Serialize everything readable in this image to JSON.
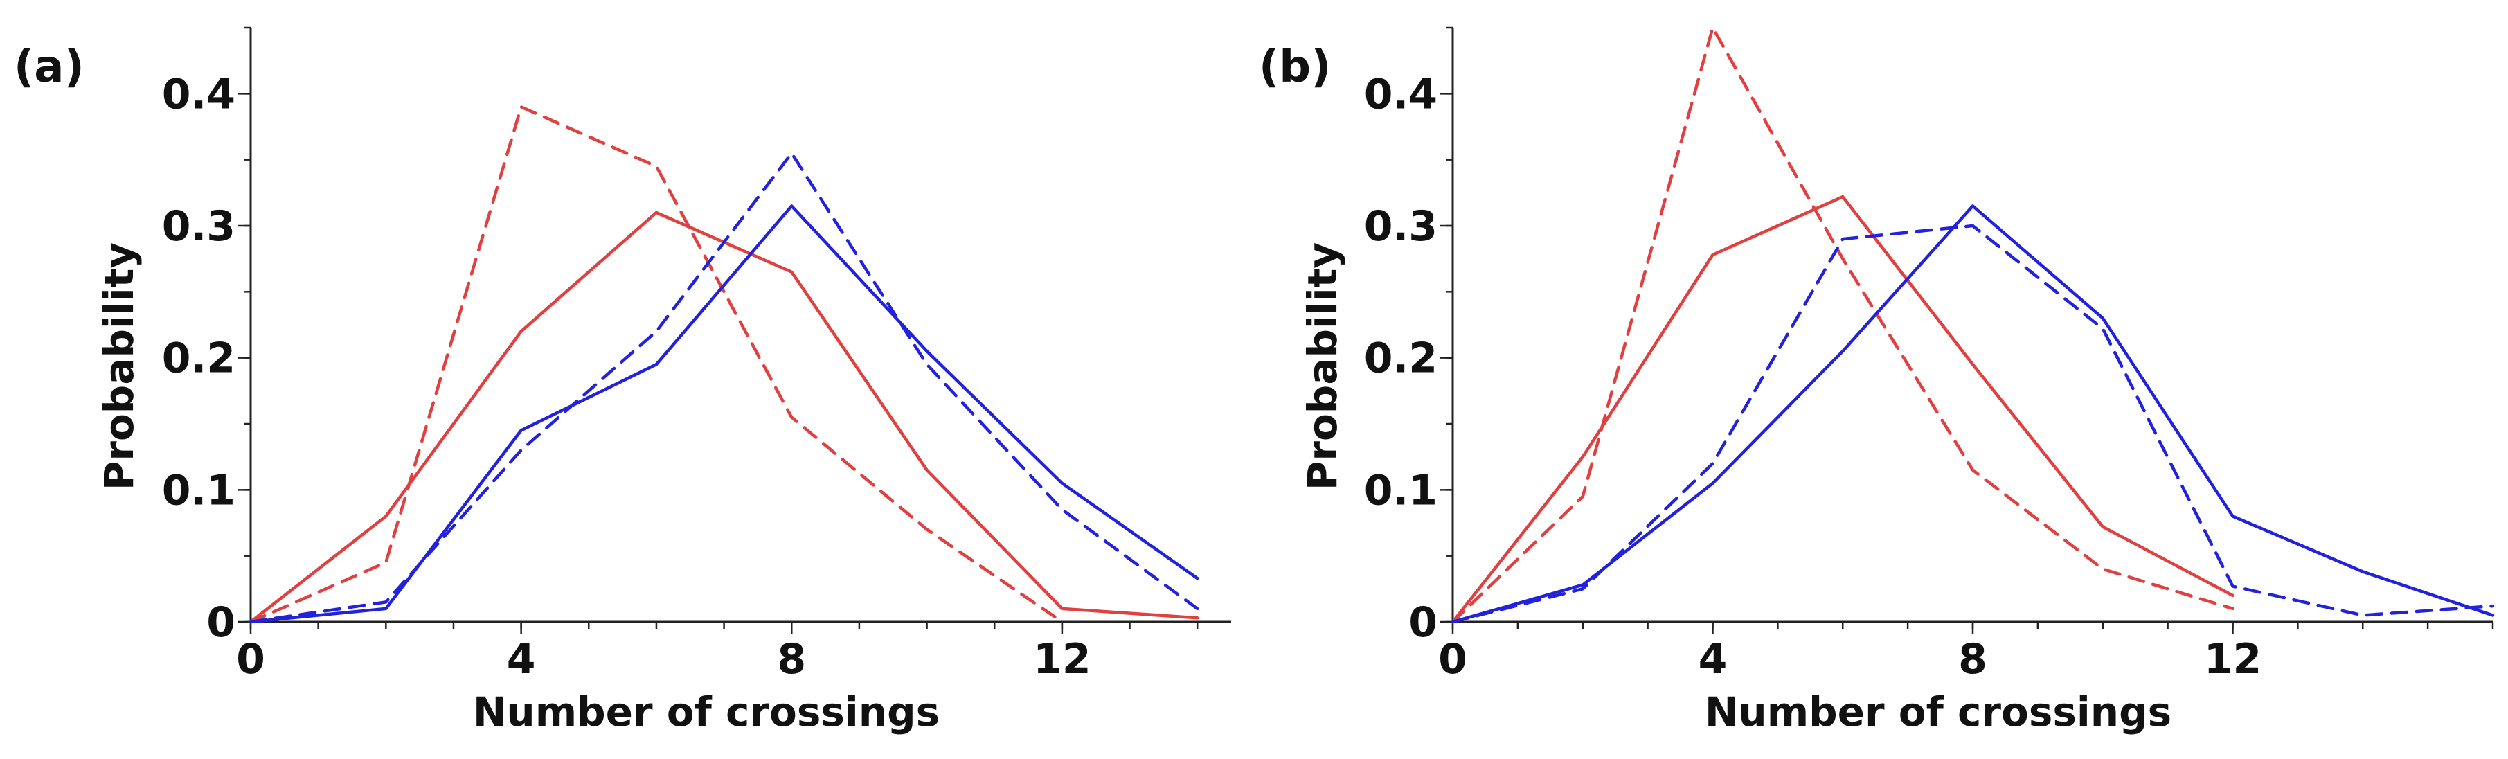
{
  "chart_data": [
    {
      "type": "line",
      "panel_label": "(a)",
      "xlabel": "Number of crossings",
      "ylabel": "Probability",
      "xlim": [
        0,
        14.5
      ],
      "ylim": [
        0,
        0.45
      ],
      "x_ticks": [
        0,
        4,
        8,
        12
      ],
      "x_tick_labels": [
        "0",
        "4",
        "8",
        "12"
      ],
      "y_ticks": [
        0,
        0.1,
        0.2,
        0.3,
        0.4
      ],
      "y_tick_labels": [
        "0",
        "0.1",
        "0.2",
        "0.3",
        "0.4"
      ],
      "series": [
        {
          "name": "red solid",
          "color": "#e04040",
          "dash": "solid",
          "x": [
            0,
            2,
            4,
            6,
            8,
            10,
            12,
            14
          ],
          "values": [
            0.0,
            0.08,
            0.22,
            0.31,
            0.265,
            0.115,
            0.01,
            0.003
          ]
        },
        {
          "name": "red dashed",
          "color": "#e04040",
          "dash": "dashed",
          "x": [
            0,
            2,
            4,
            6,
            8,
            10,
            12
          ],
          "values": [
            0.0,
            0.045,
            0.39,
            0.345,
            0.155,
            0.07,
            0.0
          ]
        },
        {
          "name": "blue solid",
          "color": "#2222dd",
          "dash": "solid",
          "x": [
            0,
            2,
            4,
            6,
            8,
            10,
            12,
            14
          ],
          "values": [
            0.0,
            0.01,
            0.145,
            0.195,
            0.315,
            0.205,
            0.105,
            0.033
          ]
        },
        {
          "name": "blue dashed",
          "color": "#2222dd",
          "dash": "dashed",
          "x": [
            0,
            2,
            4,
            6,
            8,
            10,
            12,
            14
          ],
          "values": [
            0.0,
            0.015,
            0.13,
            0.22,
            0.355,
            0.195,
            0.085,
            0.01
          ]
        }
      ]
    },
    {
      "type": "line",
      "panel_label": "(b)",
      "xlabel": "Number of crossings",
      "ylabel": "Probability",
      "xlim": [
        0,
        16
      ],
      "ylim": [
        0,
        0.45
      ],
      "x_ticks": [
        0,
        4,
        8,
        12
      ],
      "x_tick_labels": [
        "0",
        "4",
        "8",
        "12"
      ],
      "y_ticks": [
        0,
        0.1,
        0.2,
        0.3,
        0.4
      ],
      "y_tick_labels": [
        "0",
        "0.1",
        "0.2",
        "0.3",
        "0.4"
      ],
      "series": [
        {
          "name": "red solid",
          "color": "#e04040",
          "dash": "solid",
          "x": [
            0,
            2,
            4,
            6,
            8,
            10,
            12
          ],
          "values": [
            0.0,
            0.125,
            0.278,
            0.322,
            0.195,
            0.072,
            0.02
          ]
        },
        {
          "name": "red dashed",
          "color": "#e04040",
          "dash": "dashed",
          "x": [
            0,
            2,
            4,
            6,
            8,
            10,
            12
          ],
          "values": [
            0.0,
            0.095,
            0.45,
            0.275,
            0.115,
            0.04,
            0.01
          ]
        },
        {
          "name": "blue solid",
          "color": "#2222dd",
          "dash": "solid",
          "x": [
            0,
            2,
            4,
            6,
            8,
            10,
            12,
            14,
            16
          ],
          "values": [
            0.0,
            0.028,
            0.105,
            0.205,
            0.315,
            0.23,
            0.08,
            0.038,
            0.005
          ]
        },
        {
          "name": "blue dashed",
          "color": "#2222dd",
          "dash": "dashed",
          "x": [
            0,
            2,
            4,
            6,
            8,
            10,
            12,
            14,
            16
          ],
          "values": [
            0.0,
            0.025,
            0.12,
            0.29,
            0.3,
            0.222,
            0.027,
            0.005,
            0.012
          ]
        }
      ]
    }
  ]
}
